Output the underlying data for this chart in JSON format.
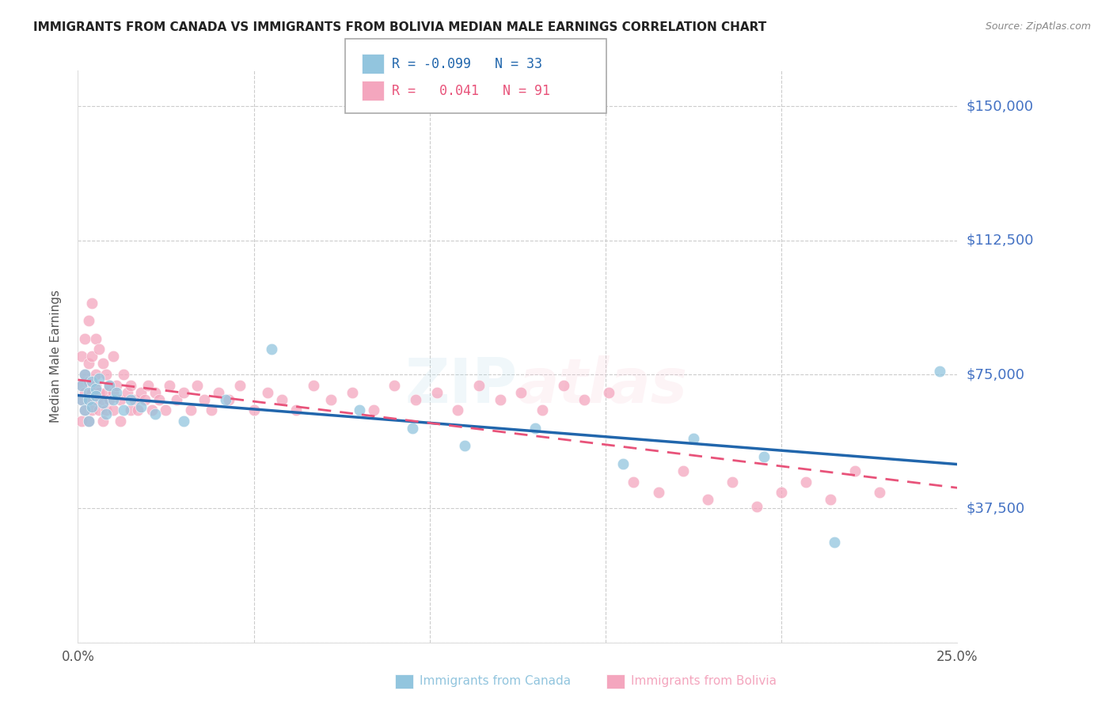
{
  "title": "IMMIGRANTS FROM CANADA VS IMMIGRANTS FROM BOLIVIA MEDIAN MALE EARNINGS CORRELATION CHART",
  "source": "Source: ZipAtlas.com",
  "ylabel": "Median Male Earnings",
  "yticks": [
    0,
    37500,
    75000,
    112500,
    150000
  ],
  "ytick_labels": [
    "",
    "$37,500",
    "$75,000",
    "$112,500",
    "$150,000"
  ],
  "ymin": 0,
  "ymax": 160000,
  "xmin": 0.0,
  "xmax": 0.25,
  "canada_R": -0.099,
  "canada_N": 33,
  "bolivia_R": 0.041,
  "bolivia_N": 91,
  "canada_color": "#92c5de",
  "bolivia_color": "#f4a6be",
  "canada_line_color": "#2166ac",
  "bolivia_line_color": "#e8537a",
  "background_color": "#ffffff",
  "grid_color": "#cccccc",
  "yaxis_color": "#4472c4",
  "watermark": "ZIPatlas",
  "legend_label_canada": "Immigrants from Canada",
  "legend_label_bolivia": "Immigrants from Bolivia",
  "canada_x": [
    0.001,
    0.001,
    0.002,
    0.002,
    0.003,
    0.003,
    0.003,
    0.004,
    0.004,
    0.005,
    0.005,
    0.006,
    0.007,
    0.008,
    0.009,
    0.01,
    0.011,
    0.013,
    0.015,
    0.018,
    0.022,
    0.03,
    0.042,
    0.055,
    0.08,
    0.095,
    0.11,
    0.13,
    0.155,
    0.175,
    0.195,
    0.215,
    0.245
  ],
  "canada_y": [
    68000,
    72000,
    75000,
    65000,
    70000,
    68000,
    62000,
    73000,
    66000,
    71000,
    69000,
    74000,
    67000,
    64000,
    72000,
    68000,
    70000,
    65000,
    68000,
    66000,
    64000,
    62000,
    68000,
    82000,
    65000,
    60000,
    55000,
    60000,
    50000,
    57000,
    52000,
    28000,
    76000
  ],
  "bolivia_x": [
    0.001,
    0.001,
    0.001,
    0.001,
    0.002,
    0.002,
    0.002,
    0.002,
    0.003,
    0.003,
    0.003,
    0.003,
    0.003,
    0.004,
    0.004,
    0.004,
    0.004,
    0.005,
    0.005,
    0.005,
    0.005,
    0.006,
    0.006,
    0.006,
    0.007,
    0.007,
    0.007,
    0.008,
    0.008,
    0.008,
    0.009,
    0.009,
    0.01,
    0.01,
    0.01,
    0.011,
    0.012,
    0.012,
    0.013,
    0.014,
    0.015,
    0.015,
    0.016,
    0.017,
    0.018,
    0.019,
    0.02,
    0.021,
    0.022,
    0.023,
    0.025,
    0.026,
    0.028,
    0.03,
    0.032,
    0.034,
    0.036,
    0.038,
    0.04,
    0.043,
    0.046,
    0.05,
    0.054,
    0.058,
    0.062,
    0.067,
    0.072,
    0.078,
    0.084,
    0.09,
    0.096,
    0.102,
    0.108,
    0.114,
    0.12,
    0.126,
    0.132,
    0.138,
    0.144,
    0.151,
    0.158,
    0.165,
    0.172,
    0.179,
    0.186,
    0.193,
    0.2,
    0.207,
    0.214,
    0.221,
    0.228
  ],
  "bolivia_y": [
    68000,
    72000,
    80000,
    62000,
    75000,
    85000,
    65000,
    70000,
    90000,
    78000,
    68000,
    62000,
    73000,
    95000,
    80000,
    70000,
    65000,
    85000,
    72000,
    68000,
    75000,
    82000,
    65000,
    70000,
    78000,
    68000,
    62000,
    75000,
    70000,
    65000,
    72000,
    68000,
    80000,
    65000,
    70000,
    72000,
    68000,
    62000,
    75000,
    70000,
    65000,
    72000,
    68000,
    65000,
    70000,
    68000,
    72000,
    65000,
    70000,
    68000,
    65000,
    72000,
    68000,
    70000,
    65000,
    72000,
    68000,
    65000,
    70000,
    68000,
    72000,
    65000,
    70000,
    68000,
    65000,
    72000,
    68000,
    70000,
    65000,
    72000,
    68000,
    70000,
    65000,
    72000,
    68000,
    70000,
    65000,
    72000,
    68000,
    70000,
    45000,
    42000,
    48000,
    40000,
    45000,
    38000,
    42000,
    45000,
    40000,
    48000,
    42000
  ]
}
